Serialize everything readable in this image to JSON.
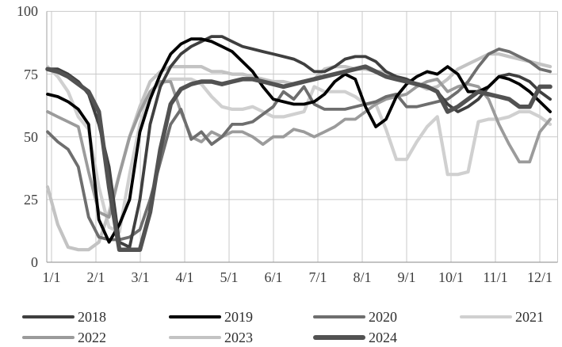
{
  "chart_data": {
    "type": "line",
    "title": "",
    "xlabel": "",
    "ylabel": "",
    "grid": true,
    "legend_position": "bottom",
    "y_axis": {
      "ticks": [
        0,
        25,
        50,
        75,
        100
      ],
      "range": [
        0,
        100
      ]
    },
    "x_axis": {
      "tick_labels": [
        "1/1",
        "2/1",
        "3/1",
        "4/1",
        "5/1",
        "6/1",
        "7/1",
        "8/1",
        "9/1",
        "10/1",
        "11/1",
        "12/1"
      ]
    },
    "categories": [
      "1/1",
      "1/8",
      "1/15",
      "1/22",
      "1/29",
      "2/5",
      "2/12",
      "2/19",
      "2/26",
      "3/5",
      "3/12",
      "3/19",
      "3/26",
      "4/2",
      "4/9",
      "4/16",
      "4/23",
      "4/30",
      "5/7",
      "5/14",
      "5/21",
      "5/28",
      "6/4",
      "6/11",
      "6/18",
      "6/25",
      "7/2",
      "7/9",
      "7/16",
      "7/23",
      "7/30",
      "8/6",
      "8/13",
      "8/20",
      "8/27",
      "9/3",
      "9/10",
      "9/17",
      "9/24",
      "10/1",
      "10/8",
      "10/15",
      "10/22",
      "10/29",
      "11/5",
      "11/12",
      "11/19",
      "11/26",
      "12/3",
      "12/10"
    ],
    "series": [
      {
        "name": "2018",
        "color": "#3f3f3f",
        "width": 3.8,
        "values": [
          77,
          77,
          75,
          72,
          67,
          55,
          38,
          8,
          6,
          25,
          55,
          70,
          78,
          83,
          86,
          88,
          90,
          90,
          88,
          86,
          85,
          84,
          83,
          82,
          81,
          79,
          76,
          76,
          78,
          81,
          82,
          82,
          80,
          76,
          74,
          73,
          71,
          70,
          68,
          63,
          60,
          62,
          65,
          70,
          74,
          75,
          74,
          72,
          68,
          65
        ]
      },
      {
        "name": "2019",
        "color": "#000000",
        "width": 3.8,
        "values": [
          67,
          66,
          64,
          61,
          55,
          17,
          8,
          15,
          25,
          52,
          65,
          75,
          83,
          87,
          89,
          89,
          88,
          86,
          84,
          80,
          76,
          70,
          65,
          64,
          63,
          63,
          64,
          67,
          72,
          75,
          73,
          62,
          54,
          57,
          66,
          71,
          74,
          76,
          75,
          78,
          75,
          68,
          68,
          70,
          74,
          73,
          71,
          68,
          64,
          60
        ]
      },
      {
        "name": "2020",
        "color": "#6e6e6e",
        "width": 3.8,
        "values": [
          52,
          48,
          45,
          38,
          18,
          10,
          9,
          9,
          10,
          13,
          25,
          40,
          55,
          61,
          49,
          52,
          47,
          50,
          55,
          55,
          56,
          59,
          62,
          68,
          65,
          70,
          63,
          61,
          61,
          61,
          62,
          63,
          64,
          66,
          67,
          62,
          62,
          63,
          64,
          65,
          68,
          72,
          78,
          83,
          85,
          84,
          82,
          80,
          77,
          76
        ]
      },
      {
        "name": "2021",
        "color": "#d0d0d0",
        "width": 4.2,
        "values": [
          78,
          74,
          68,
          58,
          53,
          30,
          14,
          12,
          35,
          55,
          68,
          71,
          73,
          73,
          73,
          71,
          66,
          62,
          61,
          61,
          62,
          60,
          58,
          58,
          59,
          60,
          70,
          68,
          68,
          68,
          66,
          63,
          63,
          53,
          41,
          41,
          48,
          54,
          58,
          35,
          35,
          36,
          56,
          57,
          57,
          58,
          60,
          60,
          58,
          55
        ]
      },
      {
        "name": "2022",
        "color": "#9b9b9b",
        "width": 3.8,
        "values": [
          60,
          58,
          56,
          54,
          36,
          20,
          18,
          35,
          50,
          60,
          68,
          72,
          72,
          60,
          50,
          48,
          52,
          50,
          52,
          52,
          50,
          47,
          50,
          50,
          53,
          52,
          50,
          52,
          54,
          57,
          57,
          60,
          63,
          65,
          66,
          67,
          70,
          72,
          73,
          68,
          70,
          71,
          70,
          65,
          55,
          47,
          40,
          40,
          52,
          57
        ]
      },
      {
        "name": "2023",
        "color": "#c3c3c3",
        "width": 4.2,
        "values": [
          30,
          15,
          6,
          5,
          5,
          8,
          20,
          35,
          50,
          62,
          72,
          76,
          78,
          78,
          78,
          78,
          76,
          76,
          75,
          75,
          74,
          73,
          72,
          72,
          71,
          72,
          73,
          77,
          78,
          78,
          77,
          77,
          76,
          76,
          74,
          73,
          71,
          69,
          70,
          73,
          77,
          79,
          81,
          83,
          83,
          82,
          81,
          80,
          79,
          78
        ]
      },
      {
        "name": "2024",
        "color": "#525252",
        "width": 5.5,
        "values": [
          77,
          76,
          74,
          71,
          68,
          60,
          30,
          5,
          5,
          5,
          20,
          45,
          63,
          69,
          71,
          72,
          72,
          71,
          72,
          73,
          73,
          72,
          71,
          70,
          71,
          72,
          73,
          74,
          75,
          76,
          77,
          78,
          76,
          74,
          73,
          72,
          71,
          70,
          68,
          60,
          62,
          65,
          68,
          67,
          66,
          65,
          62,
          62,
          70,
          70
        ]
      }
    ],
    "draw_order": [
      "2021",
      "2023",
      "2022",
      "2020",
      "2018",
      "2019",
      "2024"
    ],
    "legend_rows": [
      [
        "2018",
        "2019",
        "2020",
        "2021"
      ],
      [
        "2022",
        "2023",
        "2024"
      ]
    ]
  }
}
